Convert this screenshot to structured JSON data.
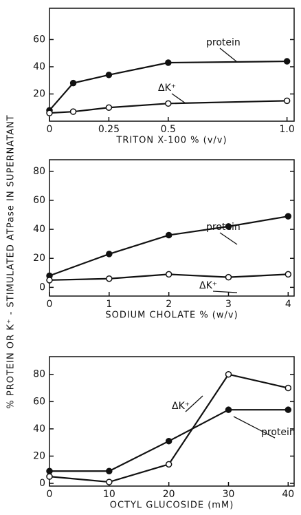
{
  "y_label": "% PROTEIN OR K⁺ - STIMULATED ATPase IN SUPERNATANT",
  "chart_data": [
    {
      "type": "line",
      "xlabel": "TRITON X-100 % (v/v)",
      "x": [
        0,
        0.1,
        0.25,
        0.5,
        1.0
      ],
      "xlim": [
        0,
        1.03
      ],
      "xticks": [
        0,
        0.25,
        0.5,
        {
          "value": 1,
          "label": "1.0"
        }
      ],
      "ylim": [
        0,
        83
      ],
      "yticks": [
        20,
        40,
        60
      ],
      "series": [
        {
          "name": "protein",
          "color": "#111",
          "marker": "filled",
          "values": [
            8,
            28,
            34,
            43,
            44
          ]
        },
        {
          "name": "ΔK⁺",
          "color": "#111",
          "marker": "open",
          "values": [
            6,
            7,
            10,
            13,
            15
          ]
        }
      ]
    },
    {
      "type": "line",
      "xlabel": "SODIUM CHOLATE % (w/v)",
      "x": [
        0,
        1,
        2,
        3,
        4
      ],
      "xlim": [
        0,
        4.1
      ],
      "xticks": [
        0,
        1,
        2,
        3,
        4
      ],
      "ylim": [
        -6,
        88
      ],
      "yticks": [
        0,
        20,
        40,
        60,
        80
      ],
      "series": [
        {
          "name": "protein",
          "color": "#111",
          "marker": "filled",
          "values": [
            8,
            23,
            36,
            42,
            49
          ]
        },
        {
          "name": "ΔK⁺",
          "color": "#111",
          "marker": "open",
          "values": [
            5,
            6,
            9,
            7,
            9
          ]
        }
      ]
    },
    {
      "type": "line",
      "xlabel": "OCTYL GLUCOSIDE (mM)",
      "x": [
        0,
        10,
        20,
        30,
        40
      ],
      "xlim": [
        0,
        41
      ],
      "xticks": [
        0,
        10,
        20,
        30,
        40
      ],
      "ylim": [
        -2,
        93
      ],
      "yticks": [
        0,
        20,
        40,
        60,
        80
      ],
      "series": [
        {
          "name": "protein",
          "color": "#111",
          "marker": "filled",
          "values": [
            9,
            9,
            31,
            54,
            54
          ]
        },
        {
          "name": "ΔK⁺",
          "color": "#111",
          "marker": "open",
          "values": [
            5,
            1,
            14,
            80,
            70
          ]
        }
      ]
    }
  ]
}
